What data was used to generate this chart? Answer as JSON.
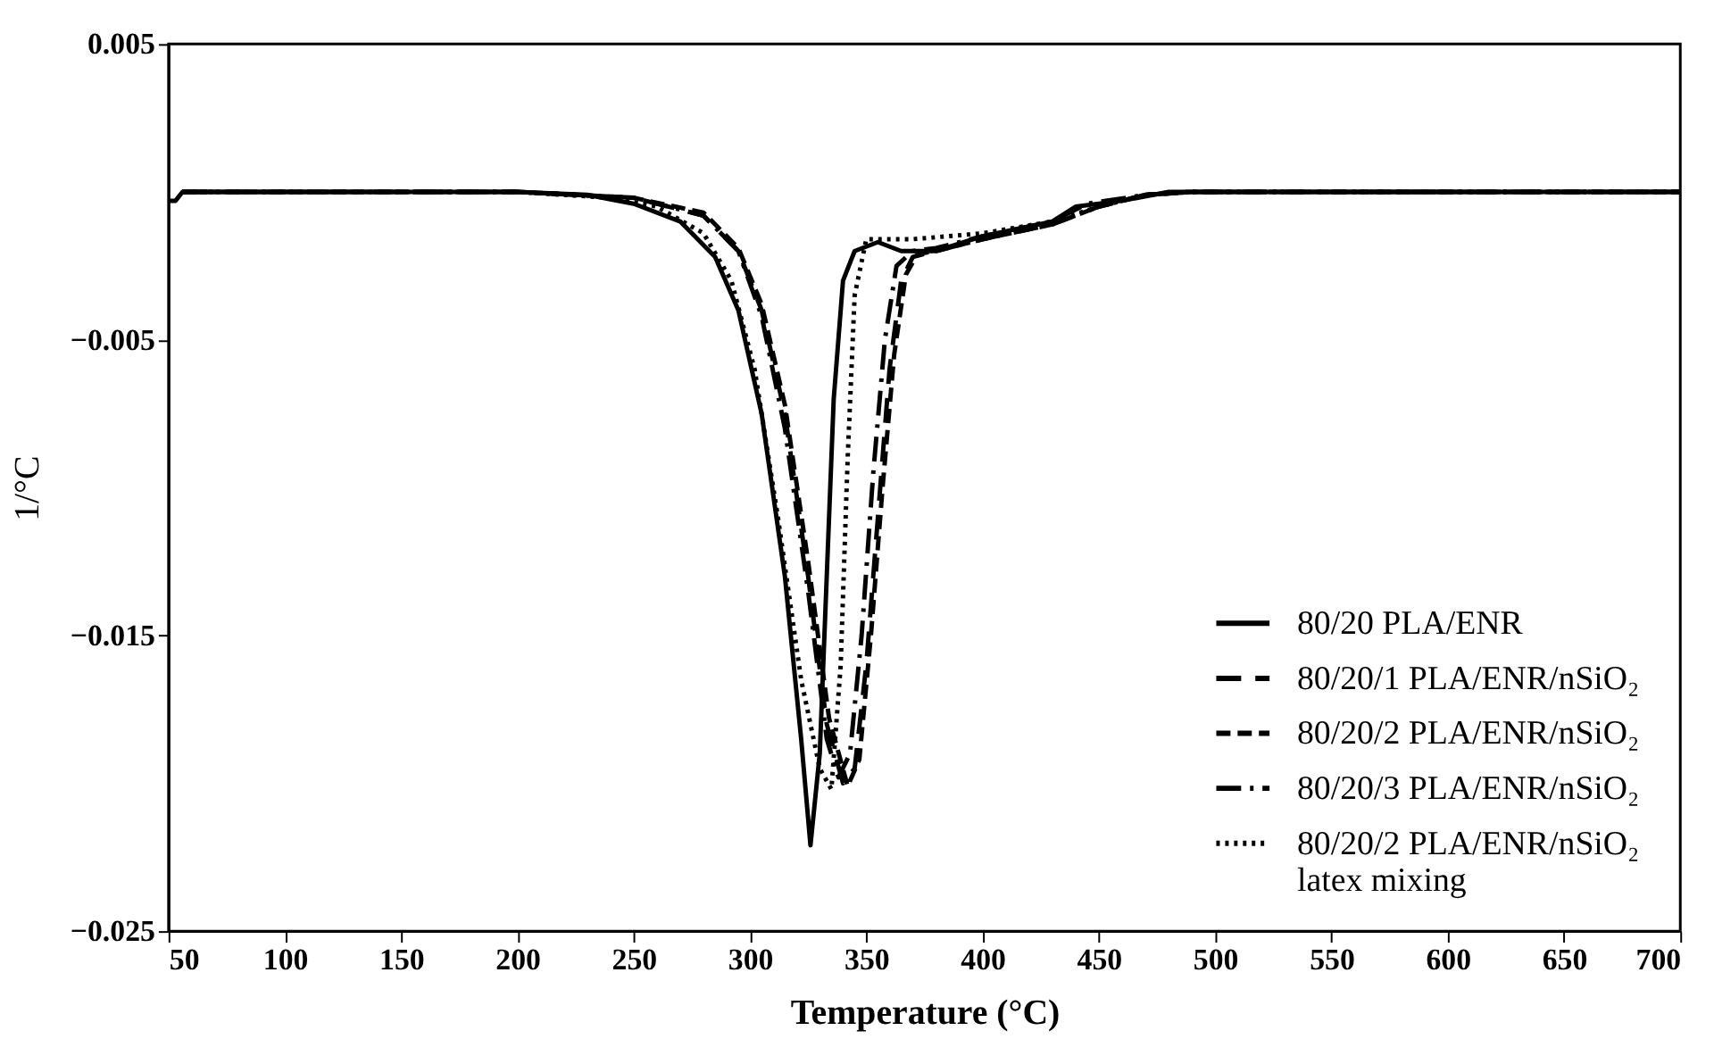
{
  "chart_data": {
    "type": "line",
    "xlabel": "Temperature (°C)",
    "ylabel": "1/°C",
    "xlim": [
      50,
      700
    ],
    "ylim": [
      -0.025,
      0.005
    ],
    "xticks": [
      50,
      100,
      150,
      200,
      250,
      300,
      350,
      400,
      450,
      500,
      550,
      600,
      650,
      700
    ],
    "yticks": [
      0.005,
      -0.005,
      -0.015,
      -0.025
    ],
    "grid": false,
    "legend": "bottom right",
    "marker": "none",
    "series": [
      {
        "name": "80/20  PLA/ENR",
        "color": "#000000",
        "line_style": "solid",
        "x": [
          50,
          53,
          56,
          60,
          100,
          150,
          200,
          230,
          250,
          270,
          285,
          295,
          305,
          315,
          322,
          326,
          330,
          333,
          336,
          340,
          345,
          355,
          365,
          380,
          400,
          430,
          440,
          460,
          480,
          550,
          700
        ],
        "values": [
          -0.0003,
          -0.0003,
          0.0,
          0.0,
          0.0,
          0.0,
          0.0,
          -0.0001,
          -0.0004,
          -0.001,
          -0.0022,
          -0.004,
          -0.0075,
          -0.013,
          -0.0185,
          -0.0221,
          -0.019,
          -0.013,
          -0.007,
          -0.003,
          -0.002,
          -0.0017,
          -0.002,
          -0.002,
          -0.0015,
          -0.001,
          -0.0005,
          -0.0003,
          0.0,
          0.0,
          0.0
        ]
      },
      {
        "name": "80/20/1  PLA/ENR/nSiO₂",
        "color": "#000000",
        "line_style": "dashed",
        "x": [
          56,
          100,
          200,
          250,
          280,
          295,
          305,
          315,
          325,
          333,
          340,
          345,
          350,
          355,
          360,
          365,
          370,
          380,
          400,
          430,
          450,
          470,
          490,
          700
        ],
        "values": [
          0.0,
          0.0,
          0.0,
          -0.0002,
          -0.0008,
          -0.002,
          -0.004,
          -0.0075,
          -0.013,
          -0.018,
          -0.02,
          -0.0195,
          -0.016,
          -0.011,
          -0.006,
          -0.003,
          -0.0022,
          -0.002,
          -0.0016,
          -0.0011,
          -0.0005,
          -0.0001,
          0.0,
          0.0
        ]
      },
      {
        "name": "80/20/2  PLA/ENR/nSiO₂",
        "color": "#000000",
        "line_style": "dashed",
        "x": [
          56,
          100,
          200,
          250,
          280,
          295,
          305,
          315,
          325,
          334,
          342,
          347,
          352,
          357,
          362,
          367,
          372,
          380,
          400,
          430,
          450,
          470,
          490,
          700
        ],
        "values": [
          0.0,
          0.0,
          0.0,
          -0.0002,
          -0.0007,
          -0.0019,
          -0.0038,
          -0.0072,
          -0.0125,
          -0.0178,
          -0.0201,
          -0.0192,
          -0.015,
          -0.01,
          -0.0055,
          -0.0028,
          -0.0021,
          -0.002,
          -0.0016,
          -0.0011,
          -0.0005,
          -0.0001,
          0.0,
          0.0
        ]
      },
      {
        "name": "80/20/3  PLA/ENR/nSiO₂",
        "color": "#000000",
        "line_style": "dashed",
        "x": [
          56,
          100,
          200,
          250,
          280,
          295,
          305,
          315,
          325,
          333,
          338,
          343,
          348,
          353,
          358,
          363,
          370,
          380,
          400,
          430,
          445,
          470,
          490,
          700
        ],
        "values": [
          0.0,
          0.0,
          0.0,
          -0.0002,
          -0.0008,
          -0.002,
          -0.0042,
          -0.008,
          -0.0135,
          -0.0185,
          -0.0198,
          -0.019,
          -0.015,
          -0.0095,
          -0.005,
          -0.0025,
          -0.002,
          -0.0019,
          -0.0015,
          -0.001,
          -0.0004,
          -0.0001,
          0.0,
          0.0
        ]
      },
      {
        "name": "80/20/2  PLA/ENR/nSiO₂\nlatex mixing",
        "color": "#000000",
        "line_style": "dotted",
        "x": [
          56,
          100,
          200,
          240,
          260,
          280,
          292,
          302,
          312,
          322,
          330,
          335,
          339,
          342,
          345,
          350,
          360,
          370,
          400,
          430,
          450,
          470,
          490,
          700
        ],
        "values": [
          0.0,
          0.0,
          0.0,
          -0.0002,
          -0.0005,
          -0.0014,
          -0.003,
          -0.006,
          -0.011,
          -0.0165,
          -0.0195,
          -0.0202,
          -0.016,
          -0.009,
          -0.0035,
          -0.0016,
          -0.0016,
          -0.0016,
          -0.0014,
          -0.001,
          -0.0005,
          -0.0001,
          0.0,
          0.0
        ]
      }
    ]
  }
}
